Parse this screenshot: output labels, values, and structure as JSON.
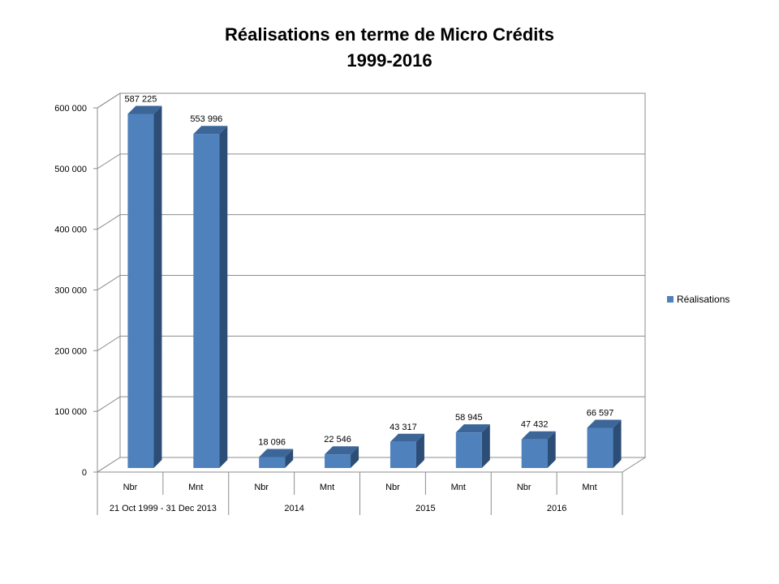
{
  "chart_data": {
    "type": "bar",
    "title": "Réalisations en terme de Micro Crédits",
    "subtitle": "1999-2016",
    "categories": [
      {
        "label": "Nbr",
        "group": "21 Oct 1999 - 31 Dec 2013"
      },
      {
        "label": "Mnt",
        "group": "21 Oct 1999 - 31 Dec 2013"
      },
      {
        "label": "Nbr",
        "group": "2014"
      },
      {
        "label": "Mnt",
        "group": "2014"
      },
      {
        "label": "Nbr",
        "group": "2015"
      },
      {
        "label": "Mnt",
        "group": "2015"
      },
      {
        "label": "Nbr",
        "group": "2016"
      },
      {
        "label": "Mnt",
        "group": "2016"
      }
    ],
    "groups": [
      "21 Oct 1999 - 31 Dec 2013",
      "2014",
      "2015",
      "2016"
    ],
    "series": [
      {
        "name": "Réalisations",
        "values": [
          587225,
          553996,
          18096,
          22546,
          43317,
          58945,
          47432,
          66597
        ],
        "labels": [
          "587 225",
          "553 996",
          "18 096",
          "22 546",
          "43 317",
          "58 945",
          "47 432",
          "66 597"
        ],
        "color": "#4f81bd"
      }
    ],
    "ylim": [
      0,
      600000
    ],
    "yticks": [
      0,
      100000,
      200000,
      300000,
      400000,
      500000,
      600000
    ],
    "ytick_labels": [
      "0",
      "100 000",
      "200 000",
      "300 000",
      "400 000",
      "500 000",
      "600 000"
    ],
    "grid": true,
    "legend": "right",
    "style": "3d-column"
  }
}
